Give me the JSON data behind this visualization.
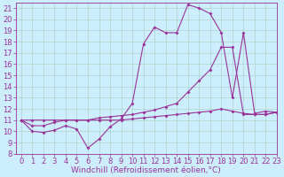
{
  "xlabel": "Windchill (Refroidissement éolien,°C)",
  "xlim": [
    -0.5,
    23
  ],
  "ylim": [
    8,
    21.5
  ],
  "yticks": [
    8,
    9,
    10,
    11,
    12,
    13,
    14,
    15,
    16,
    17,
    18,
    19,
    20,
    21
  ],
  "xticks": [
    0,
    1,
    2,
    3,
    4,
    5,
    6,
    7,
    8,
    9,
    10,
    11,
    12,
    13,
    14,
    15,
    16,
    17,
    18,
    19,
    20,
    21,
    22,
    23
  ],
  "background_color": "#cceeff",
  "grid_color": "#aaccbb",
  "line_color": "#993399",
  "line1_x": [
    0,
    1,
    2,
    3,
    4,
    5,
    6,
    7,
    8,
    9,
    10,
    11,
    12,
    13,
    14,
    15,
    16,
    17,
    18,
    19,
    20,
    21,
    22,
    23
  ],
  "line1_y": [
    11,
    10,
    9.9,
    10.1,
    10.5,
    10.2,
    8.5,
    9.3,
    10.4,
    11.1,
    12.5,
    17.8,
    19.3,
    18.8,
    18.8,
    21.3,
    21.0,
    20.5,
    18.8,
    13.0,
    18.8,
    11.6,
    11.8,
    11.7
  ],
  "line2_x": [
    0,
    1,
    2,
    3,
    4,
    5,
    6,
    7,
    8,
    9,
    10,
    11,
    12,
    13,
    14,
    15,
    16,
    17,
    18,
    19,
    20,
    21,
    22,
    23
  ],
  "line2_y": [
    11,
    10.5,
    10.5,
    10.8,
    11.0,
    11.0,
    11.0,
    11.2,
    11.3,
    11.4,
    11.5,
    11.7,
    11.9,
    12.2,
    12.5,
    13.5,
    14.5,
    15.5,
    17.5,
    17.5,
    11.5,
    11.5,
    11.5,
    11.7
  ],
  "line3_x": [
    0,
    1,
    2,
    3,
    4,
    5,
    6,
    7,
    8,
    9,
    10,
    11,
    12,
    13,
    14,
    15,
    16,
    17,
    18,
    19,
    20,
    21,
    22,
    23
  ],
  "line3_y": [
    11,
    11.0,
    11.0,
    11.0,
    11.0,
    11.0,
    11.0,
    11.0,
    11.0,
    11.0,
    11.1,
    11.2,
    11.3,
    11.4,
    11.5,
    11.6,
    11.7,
    11.8,
    12.0,
    11.8,
    11.6,
    11.5,
    11.5,
    11.7
  ],
  "marker": "D",
  "markersize": 2,
  "linewidth": 0.8,
  "xlabel_fontsize": 6.5,
  "tick_fontsize": 6
}
